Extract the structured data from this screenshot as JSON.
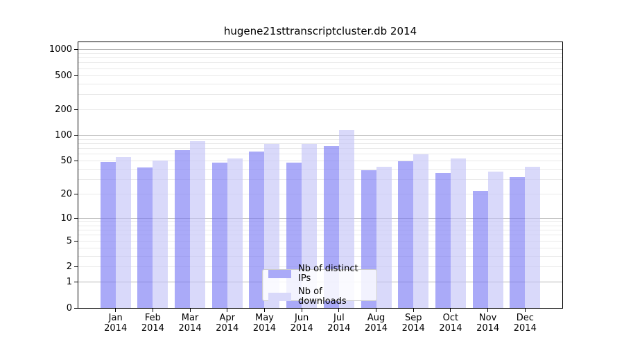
{
  "figure": {
    "title": "hugene21sttranscriptcluster.db 2014"
  },
  "chart_data": {
    "type": "bar",
    "title": "hugene21sttranscriptcluster.db 2014",
    "categories": [
      "Jan 2014",
      "Feb 2014",
      "Mar 2014",
      "Apr 2014",
      "May 2014",
      "Jun 2014",
      "Jul 2014",
      "Aug 2014",
      "Sep 2014",
      "Oct 2014",
      "Nov 2014",
      "Dec 2014"
    ],
    "series": [
      {
        "name": "Nb of distinct IPs",
        "color": "#aaaaf8",
        "fill": "rgba(118,118,244,0.62)",
        "values": [
          49,
          42,
          67,
          48,
          64,
          48,
          75,
          39,
          50,
          36,
          22,
          32
        ]
      },
      {
        "name": "Nb of downloads",
        "color": "#d9d9fa",
        "fill": "rgba(194,194,247,0.62)",
        "values": [
          56,
          51,
          86,
          54,
          80,
          80,
          115,
          43,
          60,
          54,
          37,
          43
        ]
      }
    ],
    "xlabel": "",
    "ylabel": "",
    "yscale": "log1p",
    "ylim": [
      0,
      1220
    ],
    "yticks": [
      0,
      1,
      2,
      5,
      10,
      20,
      50,
      100,
      200,
      500,
      1000
    ],
    "grid": {
      "major_lines": [
        1,
        10,
        100,
        1000
      ],
      "minor_lines": [
        2,
        3,
        4,
        5,
        6,
        7,
        8,
        9,
        20,
        30,
        40,
        50,
        60,
        70,
        80,
        90,
        200,
        300,
        400,
        500,
        600,
        700,
        800,
        900
      ],
      "major_color": "#b4b4b4",
      "minor_color": "#e9e9e9"
    },
    "legend": {
      "position": "bottom-center",
      "entries": [
        "Nb of distinct IPs",
        "Nb of downloads"
      ]
    }
  },
  "colors": {
    "background": "#ffffff",
    "axis": "#000000",
    "bar_distinct_ips": "#aaaaf8",
    "bar_downloads": "#d9d9fa",
    "gridline_major": "#b4b4b4",
    "gridline_minor": "#e9e9e9",
    "legend_border": "#cccccc"
  }
}
